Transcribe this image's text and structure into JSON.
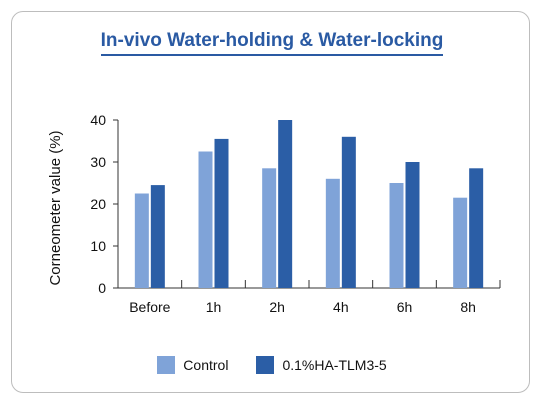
{
  "chart_data": {
    "type": "bar",
    "title": "In-vivo Water-holding & Water-locking",
    "ylabel": "Corneometer value (%)",
    "xlabel": "",
    "categories": [
      "Before",
      "1h",
      "2h",
      "4h",
      "6h",
      "8h"
    ],
    "ylim": [
      0,
      40
    ],
    "yticks": [
      0,
      10,
      20,
      30,
      40
    ],
    "series": [
      {
        "name": "Control",
        "color": "#7fa3d8",
        "values": [
          22.5,
          32.5,
          28.5,
          26,
          25,
          21.5
        ]
      },
      {
        "name": "0.1%HA-TLM3-5",
        "color": "#2b5ea6",
        "values": [
          24.5,
          35.5,
          40,
          36,
          30,
          28.5
        ]
      }
    ],
    "legend_position": "bottom",
    "grid": false
  }
}
